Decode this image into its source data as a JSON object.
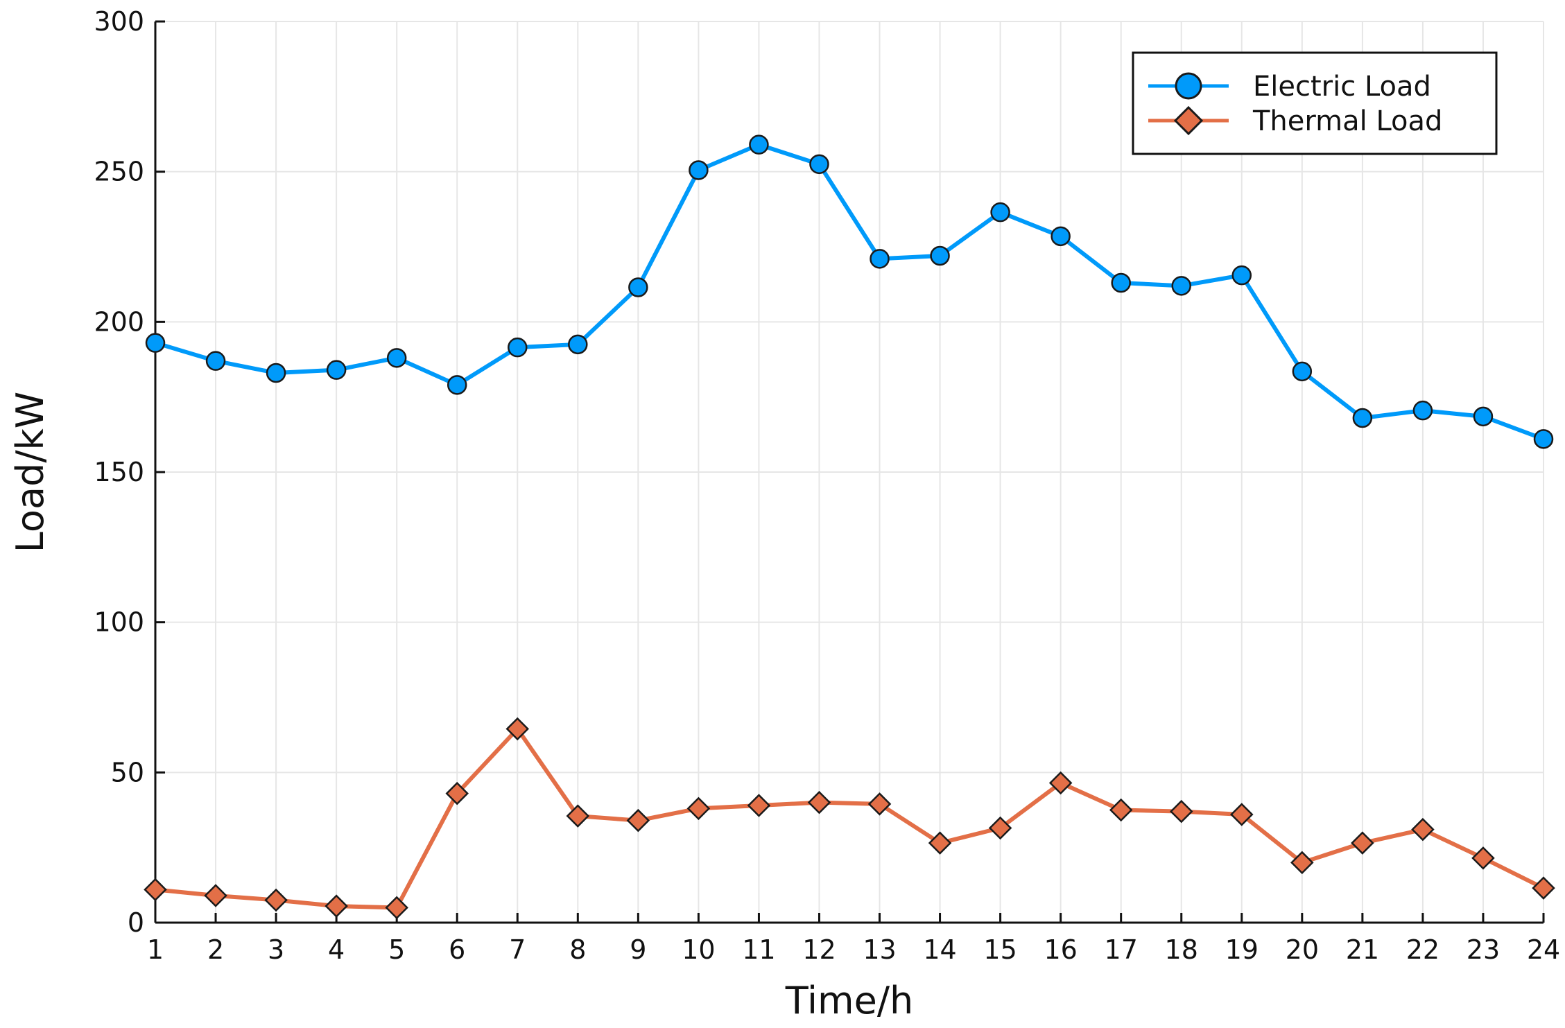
{
  "chart_data": {
    "type": "line",
    "title": "",
    "xlabel": "Time/h",
    "ylabel": "Load/kW",
    "x": [
      1,
      2,
      3,
      4,
      5,
      6,
      7,
      8,
      9,
      10,
      11,
      12,
      13,
      14,
      15,
      16,
      17,
      18,
      19,
      20,
      21,
      22,
      23,
      24
    ],
    "xlim": [
      1,
      24
    ],
    "ylim": [
      0,
      300
    ],
    "xticks": [
      "1",
      "2",
      "3",
      "4",
      "5",
      "6",
      "7",
      "8",
      "9",
      "10",
      "11",
      "12",
      "13",
      "14",
      "15",
      "16",
      "17",
      "18",
      "19",
      "20",
      "21",
      "22",
      "23",
      "24"
    ],
    "yticks": [
      "0",
      "50",
      "100",
      "150",
      "200",
      "250",
      "300"
    ],
    "grid": true,
    "legend_position": "top-right",
    "series": [
      {
        "name": "Electric Load",
        "color": "#009AFA",
        "marker": "circle",
        "values": [
          193,
          187,
          183,
          184,
          188,
          179,
          191.5,
          192.5,
          211.5,
          250.5,
          259,
          252.5,
          221,
          222,
          236.5,
          228.5,
          213,
          212,
          215.5,
          183.5,
          168,
          170.5,
          168.5,
          161
        ]
      },
      {
        "name": "Thermal Load",
        "color": "#E36F47",
        "marker": "diamond",
        "values": [
          11,
          9,
          7.5,
          5.5,
          5,
          43,
          64.5,
          35.5,
          34,
          38,
          39,
          40,
          39.5,
          26.5,
          31.5,
          46.5,
          37.5,
          37,
          36,
          20,
          26.5,
          31,
          21.5,
          11.5
        ]
      }
    ]
  }
}
